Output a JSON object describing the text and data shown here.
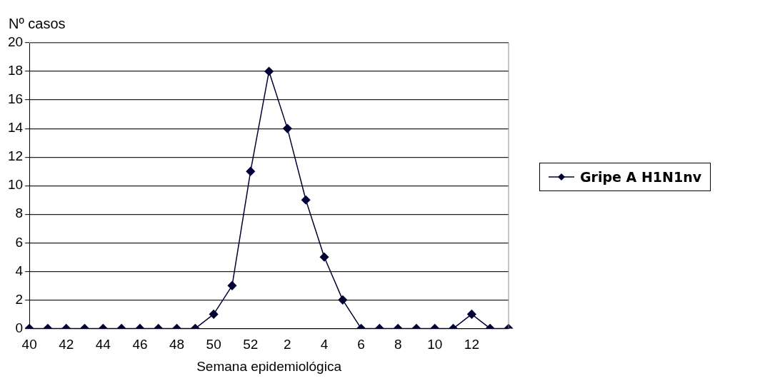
{
  "chart_data": {
    "type": "line",
    "xlabel": "Semana epidemiológica",
    "ylabel": "Nº casos",
    "categories": [
      "40",
      null,
      "42",
      null,
      "44",
      null,
      "46",
      null,
      "48",
      null,
      "50",
      null,
      "52",
      null,
      "2",
      null,
      "4",
      null,
      "6",
      null,
      "8",
      null,
      "10",
      null,
      "12",
      null,
      null
    ],
    "series": [
      {
        "name": "Gripe A H1N1nv",
        "color": "#000033",
        "values": [
          0,
          0,
          0,
          0,
          0,
          0,
          0,
          0,
          0,
          0,
          1,
          3,
          11,
          18,
          14,
          9,
          5,
          2,
          0,
          0,
          0,
          0,
          0,
          0,
          1,
          0,
          0
        ]
      }
    ],
    "ylim": [
      0,
      20
    ],
    "yticks": [
      0,
      2,
      4,
      6,
      8,
      10,
      12,
      14,
      16,
      18,
      20
    ],
    "grid": "y",
    "legend": "right",
    "marker": "diamond",
    "line_style": "solid"
  }
}
